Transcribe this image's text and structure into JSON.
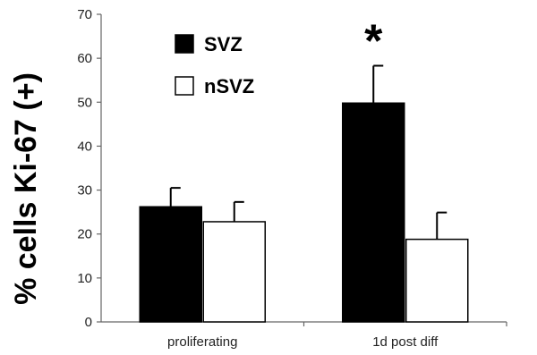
{
  "chart_data": {
    "type": "bar",
    "ylabel": "% cells Ki-67 (+)",
    "xlabel": "",
    "ylim": [
      0,
      70
    ],
    "yticks": [
      0,
      10,
      20,
      30,
      40,
      50,
      60,
      70
    ],
    "categories": [
      "proliferating",
      "1d post diff"
    ],
    "series": [
      {
        "name": "SVZ",
        "fill": "#000000",
        "values": [
          26.2,
          49.8
        ],
        "errors": [
          4.3,
          8.5
        ]
      },
      {
        "name": "nSVZ",
        "fill": "#ffffff",
        "values": [
          22.8,
          18.8
        ],
        "errors": [
          4.5,
          6.1
        ]
      }
    ],
    "annotations": [
      {
        "text": "*",
        "category": "1d post diff",
        "series": "SVZ"
      }
    ],
    "legend": "top-left",
    "grid": false
  }
}
